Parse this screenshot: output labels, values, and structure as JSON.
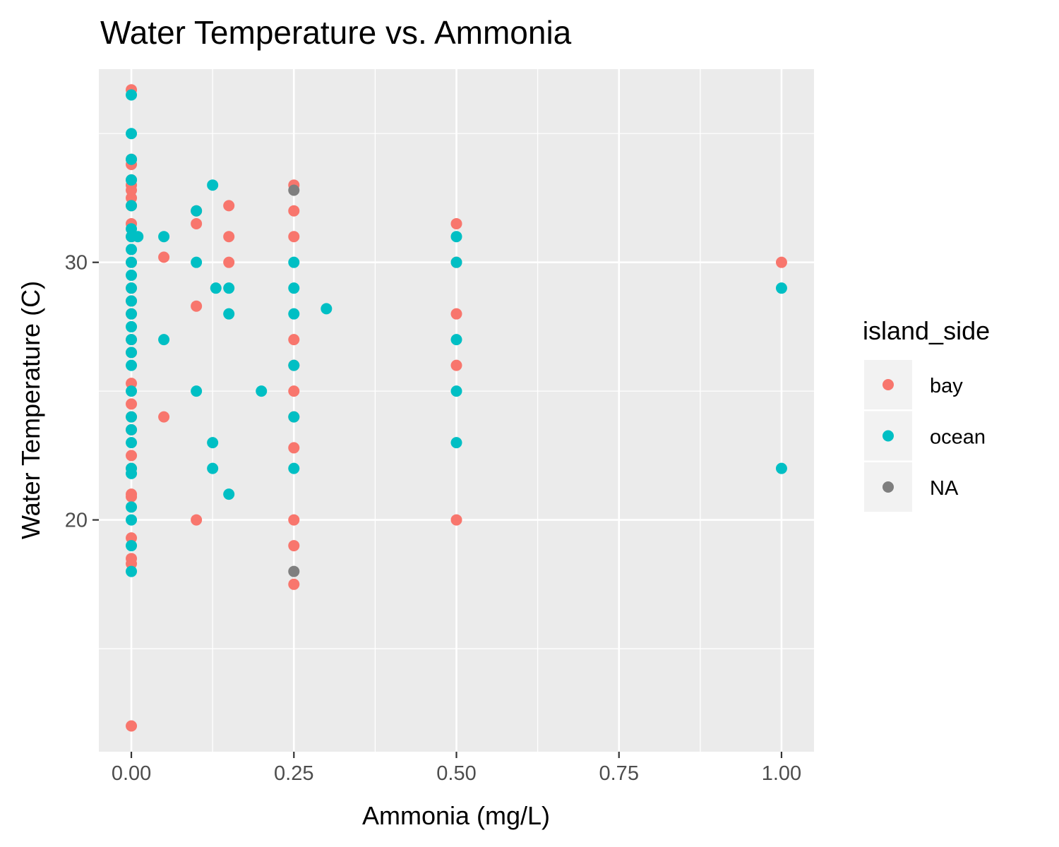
{
  "chart_data": {
    "type": "scatter",
    "title": "Water Temperature vs. Ammonia",
    "xlabel": "Ammonia (mg/L)",
    "ylabel": "Water Temperature (C)",
    "xlim": [
      -0.05,
      1.05
    ],
    "ylim": [
      11.0,
      37.5
    ],
    "x_ticks": [
      0.0,
      0.25,
      0.5,
      0.75,
      1.0
    ],
    "x_tick_labels": [
      "0.00",
      "0.25",
      "0.50",
      "0.75",
      "1.00"
    ],
    "y_ticks": [
      20,
      30
    ],
    "y_tick_labels": [
      "20",
      "30"
    ],
    "grid": true,
    "legend": {
      "title": "island_side",
      "position": "right",
      "entries": [
        {
          "label": "bay",
          "color": "#F8766D"
        },
        {
          "label": "ocean",
          "color": "#00BFC4"
        },
        {
          "label": "NA",
          "color": "#7F7F7F"
        }
      ]
    },
    "series": [
      {
        "name": "bay",
        "color": "#F8766D",
        "points": [
          [
            0,
            36.7
          ],
          [
            0,
            34.0
          ],
          [
            0,
            33.8
          ],
          [
            0,
            33.2
          ],
          [
            0,
            33.0
          ],
          [
            0,
            32.8
          ],
          [
            0,
            32.5
          ],
          [
            0,
            32.2
          ],
          [
            0,
            31.5
          ],
          [
            0,
            31.0
          ],
          [
            0,
            30.0
          ],
          [
            0,
            29.0
          ],
          [
            0,
            28.5
          ],
          [
            0,
            28.0
          ],
          [
            0,
            27.0
          ],
          [
            0,
            26.5
          ],
          [
            0,
            25.3
          ],
          [
            0,
            24.5
          ],
          [
            0,
            24.0
          ],
          [
            0,
            23.5
          ],
          [
            0,
            22.5
          ],
          [
            0,
            22.0
          ],
          [
            0,
            21.0
          ],
          [
            0,
            20.9
          ],
          [
            0,
            19.3
          ],
          [
            0,
            18.5
          ],
          [
            0,
            18.3
          ],
          [
            0,
            12.0
          ],
          [
            0.05,
            30.2
          ],
          [
            0.05,
            24.0
          ],
          [
            0.1,
            32.0
          ],
          [
            0.1,
            31.5
          ],
          [
            0.1,
            28.3
          ],
          [
            0.1,
            20.0
          ],
          [
            0.15,
            32.2
          ],
          [
            0.15,
            31.0
          ],
          [
            0.15,
            30.0
          ],
          [
            0.25,
            33.0
          ],
          [
            0.25,
            32.0
          ],
          [
            0.25,
            31.0
          ],
          [
            0.25,
            27.0
          ],
          [
            0.25,
            26.0
          ],
          [
            0.25,
            25.0
          ],
          [
            0.25,
            24.0
          ],
          [
            0.25,
            22.8
          ],
          [
            0.25,
            20.0
          ],
          [
            0.25,
            19.0
          ],
          [
            0.25,
            17.5
          ],
          [
            0.5,
            31.5
          ],
          [
            0.5,
            30.0
          ],
          [
            0.5,
            28.0
          ],
          [
            0.5,
            26.0
          ],
          [
            0.5,
            20.0
          ],
          [
            1.0,
            30.0
          ]
        ]
      },
      {
        "name": "ocean",
        "color": "#00BFC4",
        "points": [
          [
            0,
            36.5
          ],
          [
            0,
            35.0
          ],
          [
            0,
            34.0
          ],
          [
            0,
            33.2
          ],
          [
            0,
            32.2
          ],
          [
            0,
            31.3
          ],
          [
            0,
            31.0
          ],
          [
            0,
            30.5
          ],
          [
            0,
            30.0
          ],
          [
            0,
            29.5
          ],
          [
            0,
            29.0
          ],
          [
            0,
            28.5
          ],
          [
            0,
            28.0
          ],
          [
            0,
            27.5
          ],
          [
            0,
            27.0
          ],
          [
            0,
            26.5
          ],
          [
            0,
            26.0
          ],
          [
            0,
            25.0
          ],
          [
            0,
            24.0
          ],
          [
            0,
            23.5
          ],
          [
            0,
            23.0
          ],
          [
            0,
            22.0
          ],
          [
            0,
            21.8
          ],
          [
            0,
            20.5
          ],
          [
            0,
            20.0
          ],
          [
            0,
            19.0
          ],
          [
            0,
            18.0
          ],
          [
            0.01,
            31.0
          ],
          [
            0.05,
            31.0
          ],
          [
            0.05,
            27.0
          ],
          [
            0.1,
            32.0
          ],
          [
            0.1,
            30.0
          ],
          [
            0.1,
            25.0
          ],
          [
            0.125,
            33.0
          ],
          [
            0.125,
            23.0
          ],
          [
            0.125,
            22.0
          ],
          [
            0.13,
            29.0
          ],
          [
            0.15,
            29.0
          ],
          [
            0.15,
            28.0
          ],
          [
            0.15,
            21.0
          ],
          [
            0.2,
            25.0
          ],
          [
            0.25,
            30.0
          ],
          [
            0.25,
            29.0
          ],
          [
            0.25,
            28.0
          ],
          [
            0.25,
            26.0
          ],
          [
            0.25,
            24.0
          ],
          [
            0.25,
            22.0
          ],
          [
            0.3,
            28.2
          ],
          [
            0.5,
            31.0
          ],
          [
            0.5,
            30.0
          ],
          [
            0.5,
            27.0
          ],
          [
            0.5,
            25.0
          ],
          [
            0.5,
            23.0
          ],
          [
            1.0,
            29.0
          ],
          [
            1.0,
            22.0
          ]
        ]
      },
      {
        "name": "NA",
        "color": "#7F7F7F",
        "points": [
          [
            0.25,
            32.8
          ],
          [
            0.25,
            18.0
          ]
        ]
      }
    ]
  }
}
